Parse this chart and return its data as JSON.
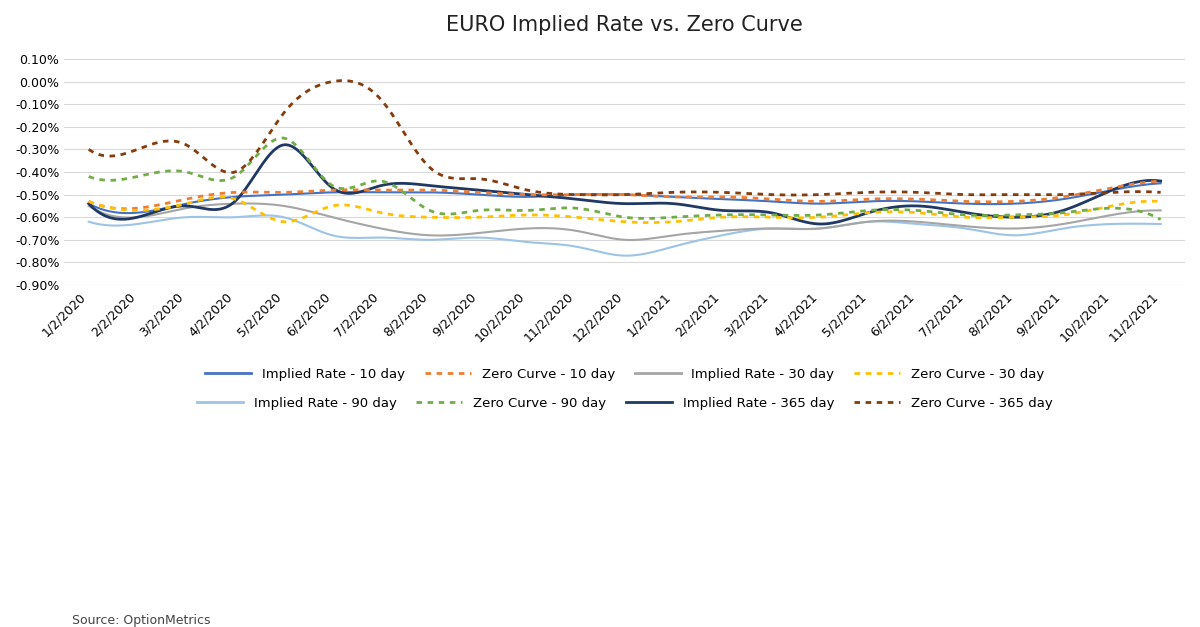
{
  "title": "EURO Implied Rate vs. Zero Curve",
  "source": "Source: OptionMetrics",
  "ylim": [
    -0.009,
    0.0015
  ],
  "yticks": [
    0.001,
    0.0,
    -0.001,
    -0.002,
    -0.003,
    -0.004,
    -0.005,
    -0.006,
    -0.007,
    -0.008,
    -0.009
  ],
  "background_color": "#ffffff",
  "x_labels": [
    "1/2/2020",
    "2/2/2020",
    "3/2/2020",
    "4/2/2020",
    "5/2/2020",
    "6/2/2020",
    "7/2/2020",
    "8/2/2020",
    "9/2/2020",
    "10/2/2020",
    "11/2/2020",
    "12/2/2020",
    "1/2/2021",
    "2/2/2021",
    "3/2/2021",
    "4/2/2021",
    "5/2/2021",
    "6/2/2021",
    "7/2/2021",
    "8/2/2021",
    "9/2/2021",
    "10/2/2021",
    "11/2/2021"
  ],
  "series": {
    "implied_10": {
      "label": "Implied Rate - 10 day",
      "color": "#4472C4",
      "style": "solid",
      "linewidth": 1.5,
      "values": [
        -0.0054,
        -0.0058,
        -0.0054,
        -0.0051,
        -0.005,
        -0.0049,
        -0.0049,
        -0.0049,
        -0.005,
        -0.0051,
        -0.005,
        -0.005,
        -0.0051,
        -0.0052,
        -0.0053,
        -0.0054,
        -0.0053,
        -0.0053,
        -0.0054,
        -0.0054,
        -0.0052,
        -0.0048,
        -0.0045
      ]
    },
    "zero_10": {
      "label": "Zero Curve - 10 day",
      "color": "#ED7D31",
      "style": "dotted",
      "linewidth": 2.0,
      "values": [
        -0.0053,
        -0.0056,
        -0.0052,
        -0.0049,
        -0.0049,
        -0.0048,
        -0.0048,
        -0.0048,
        -0.0049,
        -0.005,
        -0.005,
        -0.005,
        -0.0051,
        -0.0051,
        -0.0052,
        -0.0053,
        -0.0052,
        -0.0052,
        -0.0053,
        -0.0053,
        -0.0051,
        -0.0047,
        -0.0044
      ]
    },
    "implied_30": {
      "label": "Implied Rate - 30 day",
      "color": "#A5A5A5",
      "style": "solid",
      "linewidth": 1.5,
      "values": [
        -0.0055,
        -0.006,
        -0.0056,
        -0.0054,
        -0.0055,
        -0.006,
        -0.0065,
        -0.0068,
        -0.0067,
        -0.0065,
        -0.0066,
        -0.007,
        -0.0068,
        -0.0066,
        -0.0065,
        -0.0065,
        -0.0062,
        -0.0062,
        -0.0064,
        -0.0065,
        -0.0063,
        -0.0059,
        -0.0057
      ]
    },
    "zero_30": {
      "label": "Zero Curve - 30 day",
      "color": "#FFC000",
      "style": "dotted",
      "linewidth": 2.0,
      "values": [
        -0.0053,
        -0.0057,
        -0.0054,
        -0.0052,
        -0.0062,
        -0.0055,
        -0.0058,
        -0.006,
        -0.006,
        -0.0059,
        -0.006,
        -0.0062,
        -0.0062,
        -0.006,
        -0.006,
        -0.006,
        -0.0058,
        -0.0058,
        -0.006,
        -0.006,
        -0.0059,
        -0.0055,
        -0.0053
      ]
    },
    "implied_90": {
      "label": "Implied Rate - 90 day",
      "color": "#9DC3E6",
      "style": "solid",
      "linewidth": 1.5,
      "values": [
        -0.0062,
        -0.0063,
        -0.006,
        -0.006,
        -0.006,
        -0.0068,
        -0.0069,
        -0.007,
        -0.0069,
        -0.0071,
        -0.0073,
        -0.0077,
        -0.0073,
        -0.0068,
        -0.0065,
        -0.0065,
        -0.0062,
        -0.0063,
        -0.0065,
        -0.0068,
        -0.0065,
        -0.0063,
        -0.0063
      ]
    },
    "zero_90": {
      "label": "Zero Curve - 90 day",
      "color": "#70AD47",
      "style": "dotted",
      "linewidth": 2.0,
      "values": [
        -0.0042,
        -0.0042,
        -0.004,
        -0.0042,
        -0.0025,
        -0.0046,
        -0.0044,
        -0.0057,
        -0.0057,
        -0.0057,
        -0.0056,
        -0.006,
        -0.006,
        -0.0059,
        -0.0059,
        -0.0059,
        -0.0057,
        -0.0057,
        -0.0059,
        -0.0059,
        -0.0058,
        -0.0056,
        -0.0061
      ]
    },
    "implied_365": {
      "label": "Implied Rate - 365 day",
      "color": "#1F3864",
      "style": "solid",
      "linewidth": 2.0,
      "values": [
        -0.0054,
        -0.006,
        -0.0055,
        -0.0053,
        -0.0028,
        -0.0047,
        -0.0046,
        -0.0046,
        -0.0048,
        -0.005,
        -0.0052,
        -0.0054,
        -0.0054,
        -0.0057,
        -0.0058,
        -0.0063,
        -0.0058,
        -0.0055,
        -0.0058,
        -0.006,
        -0.0057,
        -0.0048,
        -0.0044
      ]
    },
    "zero_365": {
      "label": "Zero Curve - 365 day",
      "color": "#843C0C",
      "style": "dotted",
      "linewidth": 2.0,
      "values": [
        -0.003,
        -0.003,
        -0.0028,
        -0.004,
        -0.0014,
        0.0,
        -0.0008,
        -0.0038,
        -0.0043,
        -0.0048,
        -0.005,
        -0.005,
        -0.0049,
        -0.0049,
        -0.005,
        -0.005,
        -0.0049,
        -0.0049,
        -0.005,
        -0.005,
        -0.005,
        -0.0049,
        -0.0049
      ]
    }
  },
  "dense_x": {
    "implied_10_dense": [
      -0.0054,
      -0.0055,
      -0.0057,
      -0.0058,
      -0.0055,
      -0.0054,
      -0.0052,
      -0.0051,
      -0.005,
      -0.005,
      -0.0049,
      -0.0049,
      -0.0049,
      -0.0049,
      -0.0049,
      -0.005,
      -0.005,
      -0.0051,
      -0.0051,
      -0.0051,
      -0.005,
      -0.005,
      -0.005,
      -0.0051,
      -0.0051,
      -0.0051,
      -0.0052,
      -0.0052,
      -0.0053,
      -0.0053,
      -0.0054,
      -0.0053,
      -0.0053,
      -0.0053,
      -0.0054,
      -0.0054,
      -0.0054,
      -0.0053,
      -0.0053,
      -0.0052,
      -0.0052,
      -0.0051,
      -0.005,
      -0.0049,
      -0.0048,
      -0.0047,
      -0.0046
    ],
    "zero_10_dense": [
      -0.0053,
      -0.0054,
      -0.0056,
      -0.0057,
      -0.0054,
      -0.0053,
      -0.0051,
      -0.005,
      -0.0049,
      -0.0049,
      -0.0048,
      -0.0048,
      -0.0048,
      -0.0048,
      -0.0048,
      -0.0049,
      -0.0049,
      -0.005,
      -0.005,
      -0.005,
      -0.0049,
      -0.0049,
      -0.0049,
      -0.005,
      -0.005,
      -0.005,
      -0.0051,
      -0.0051,
      -0.0052,
      -0.0052,
      -0.0053,
      -0.0052,
      -0.0052,
      -0.0052,
      -0.0053,
      -0.0053,
      -0.0053,
      -0.0052,
      -0.0052,
      -0.0051,
      -0.0051,
      -0.005,
      -0.0049,
      -0.0048,
      -0.0047,
      -0.0046,
      -0.0045
    ]
  }
}
